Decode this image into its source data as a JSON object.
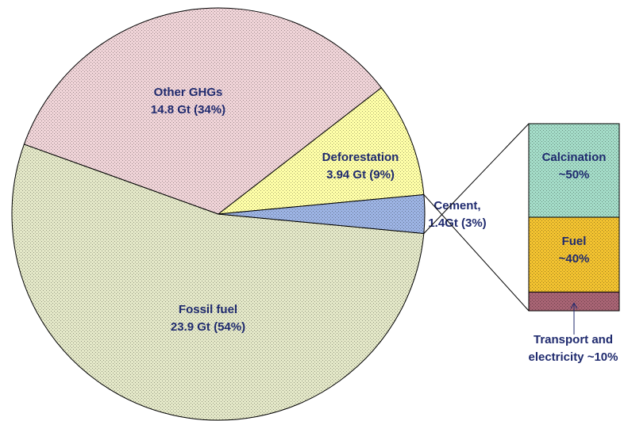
{
  "chart_data": [
    {
      "type": "pie",
      "categories": [
        "Fossil fuel",
        "Other GHGs",
        "Deforestation",
        "Cement,"
      ],
      "values": [
        54,
        34,
        9,
        3
      ],
      "value_labels": [
        "23.9 Gt (54%)",
        "14.8 Gt (34%)",
        "3.94 Gt (9%)",
        "1.4Gt (3%)"
      ],
      "colors": [
        "#e4e8c8",
        "#f0d4d8",
        "#ffffa8",
        "#9db4e4"
      ]
    },
    {
      "type": "stacked-bar",
      "categories": [
        "Calcination",
        "Fuel",
        "Transport and electricity"
      ],
      "values": [
        50,
        40,
        10
      ],
      "value_labels": [
        "~50%",
        "~40%",
        "~10%"
      ],
      "colors": [
        "#a4dcc8",
        "#f2c230",
        "#a86474"
      ]
    }
  ]
}
